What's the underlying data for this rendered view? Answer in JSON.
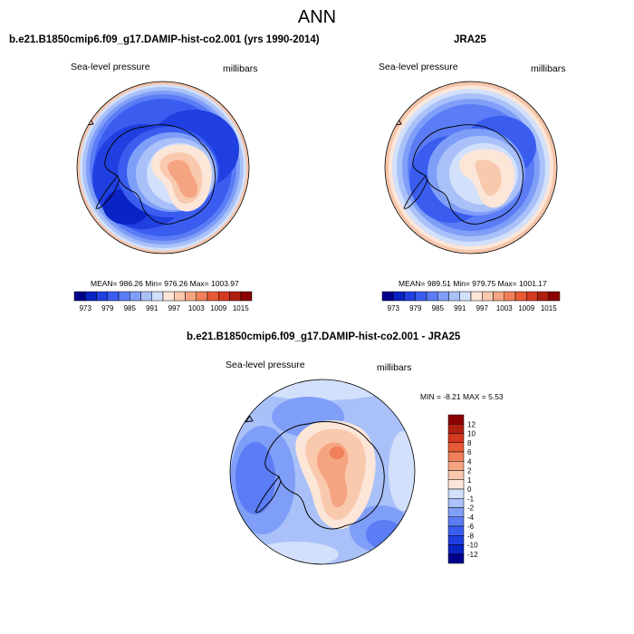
{
  "figure": {
    "title": "ANN",
    "panels": [
      {
        "title": "b.e21.B1850cmip6.f09_g17.DAMIP-hist-co2.001 (yrs 1990-2014)",
        "left_label": "Sea-level pressure",
        "right_label": "millibars",
        "stats": "MEAN= 986.26  Min= 976.26  Max= 1003.97"
      },
      {
        "title": "JRA25",
        "left_label": "Sea-level pressure",
        "right_label": "millibars",
        "stats": "MEAN= 989.51  Min= 979.75  Max= 1001.17"
      },
      {
        "title": "b.e21.B1850cmip6.f09_g17.DAMIP-hist-co2.001 - JRA25",
        "left_label": "Sea-level pressure",
        "right_label": "millibars",
        "stats": "MIN =  -8.21 MAX =   5.53"
      }
    ]
  },
  "chart_data": [
    {
      "type": "heatmap",
      "projection": "south-polar-stereographic",
      "variable": "Sea-level pressure",
      "units": "millibars",
      "mean": 986.26,
      "min": 976.26,
      "max": 1003.97,
      "colorbar": {
        "orientation": "horizontal",
        "levels": [
          970,
          973,
          976,
          979,
          982,
          985,
          988,
          991,
          994,
          997,
          1000,
          1003,
          1006,
          1009,
          1012,
          1015,
          1018
        ],
        "tick_labels": [
          "973",
          "979",
          "985",
          "991",
          "997",
          "1003",
          "1009",
          "1015"
        ],
        "colors": [
          "#00008b",
          "#0a23c4",
          "#1f3fe0",
          "#3a5df0",
          "#5b7cf5",
          "#7f9ef7",
          "#a9c1f8",
          "#d2e0fb",
          "#fbe6d8",
          "#f9c9ae",
          "#f5a482",
          "#f07f5a",
          "#e85a36",
          "#d5391f",
          "#b01f10",
          "#8b0000"
        ]
      }
    },
    {
      "type": "heatmap",
      "projection": "south-polar-stereographic",
      "variable": "Sea-level pressure",
      "units": "millibars",
      "mean": 989.51,
      "min": 979.75,
      "max": 1001.17,
      "colorbar": {
        "orientation": "horizontal",
        "levels": [
          970,
          973,
          976,
          979,
          982,
          985,
          988,
          991,
          994,
          997,
          1000,
          1003,
          1006,
          1009,
          1012,
          1015,
          1018
        ],
        "tick_labels": [
          "973",
          "979",
          "985",
          "991",
          "997",
          "1003",
          "1009",
          "1015"
        ],
        "colors": [
          "#00008b",
          "#0a23c4",
          "#1f3fe0",
          "#3a5df0",
          "#5b7cf5",
          "#7f9ef7",
          "#a9c1f8",
          "#d2e0fb",
          "#fbe6d8",
          "#f9c9ae",
          "#f5a482",
          "#f07f5a",
          "#e85a36",
          "#d5391f",
          "#b01f10",
          "#8b0000"
        ]
      }
    },
    {
      "type": "heatmap",
      "projection": "south-polar-stereographic",
      "variable": "Sea-level pressure",
      "units": "millibars",
      "min": -8.21,
      "max": 5.53,
      "colorbar": {
        "orientation": "vertical",
        "levels": [
          -14,
          -12,
          -10,
          -8,
          -6,
          -4,
          -2,
          -1,
          0,
          1,
          2,
          4,
          6,
          8,
          10,
          12,
          14
        ],
        "tick_labels": [
          "12",
          "10",
          "8",
          "6",
          "4",
          "2",
          "1",
          "0",
          "-1",
          "-2",
          "-4",
          "-6",
          "-8",
          "-10",
          "-12"
        ],
        "colors": [
          "#8b0000",
          "#b01f10",
          "#d5391f",
          "#e85a36",
          "#f07f5a",
          "#f5a482",
          "#f9c9ae",
          "#fbe6d8",
          "#d2e0fb",
          "#a9c1f8",
          "#7f9ef7",
          "#5b7cf5",
          "#3a5df0",
          "#1f3fe0",
          "#0a23c4",
          "#00008b"
        ]
      }
    }
  ]
}
